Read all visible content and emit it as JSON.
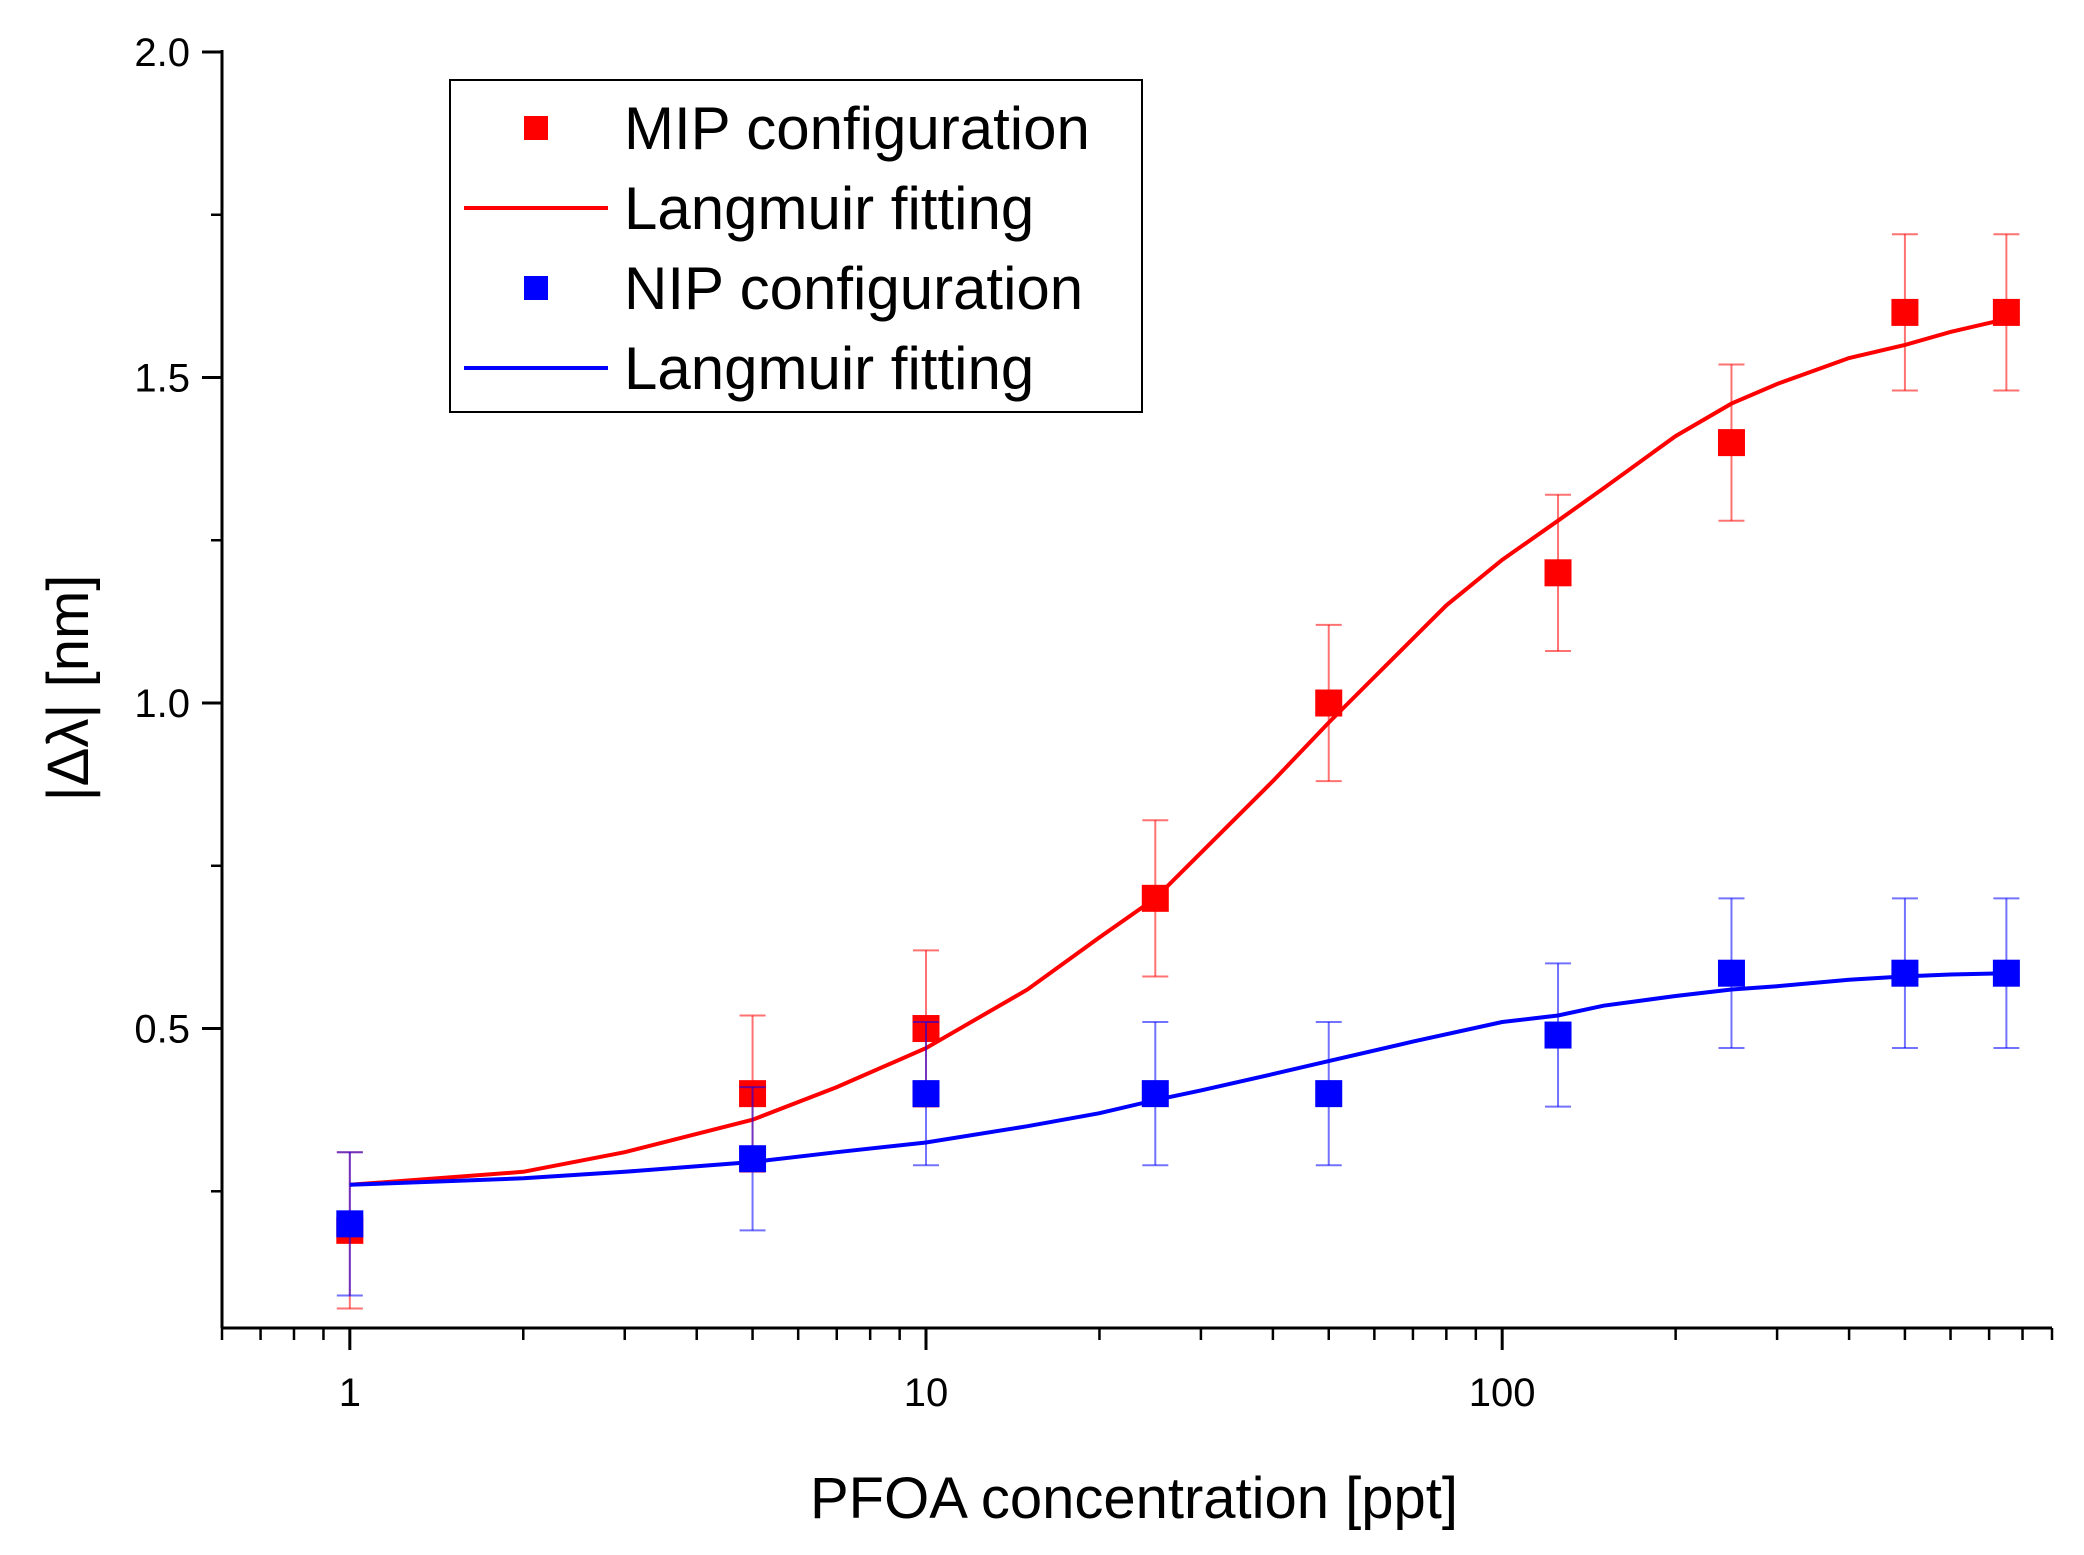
{
  "chart_data": {
    "type": "scatter",
    "xscale": "log",
    "xlabel": "PFOA concentration [ppt]",
    "ylabel": "|Δλ| [nm]",
    "xlim": [
      0.6,
      900
    ],
    "ylim": [
      0.04,
      2.0
    ],
    "xticks": [
      1,
      10,
      100
    ],
    "xtick_labels": [
      "1",
      "10",
      "100"
    ],
    "yticks": [
      0.5,
      1.0,
      1.5,
      2.0
    ],
    "ytick_labels": [
      "0.5",
      "1.0",
      "1.5",
      "2.0"
    ],
    "legend_position": "top-left",
    "grid": false,
    "series": [
      {
        "name": "MIP configuration",
        "kind": "points",
        "color": "#ff0000",
        "x": [
          1,
          5,
          10,
          25,
          50,
          125,
          250,
          500,
          750
        ],
        "y": [
          0.19,
          0.4,
          0.5,
          0.7,
          1.0,
          1.2,
          1.4,
          1.6,
          1.6
        ],
        "err": [
          0.12,
          0.12,
          0.12,
          0.12,
          0.12,
          0.12,
          0.12,
          0.12,
          0.12
        ]
      },
      {
        "name": "Langmuir fitting",
        "kind": "line",
        "color": "#ff0000",
        "x": [
          1,
          2,
          3,
          5,
          7,
          10,
          15,
          20,
          25,
          30,
          40,
          50,
          60,
          80,
          100,
          125,
          150,
          200,
          250,
          300,
          400,
          500,
          600,
          750
        ],
        "y": [
          0.26,
          0.28,
          0.31,
          0.36,
          0.41,
          0.47,
          0.56,
          0.64,
          0.7,
          0.77,
          0.88,
          0.97,
          1.04,
          1.15,
          1.22,
          1.28,
          1.33,
          1.41,
          1.46,
          1.49,
          1.53,
          1.55,
          1.57,
          1.59
        ]
      },
      {
        "name": "NIP configuration",
        "kind": "points",
        "color": "#0000ff",
        "x": [
          1,
          5,
          10,
          25,
          50,
          125,
          250,
          500,
          750
        ],
        "y": [
          0.2,
          0.3,
          0.4,
          0.4,
          0.4,
          0.49,
          0.585,
          0.585,
          0.585
        ],
        "err": [
          0.11,
          0.11,
          0.11,
          0.11,
          0.11,
          0.11,
          0.115,
          0.115,
          0.115
        ]
      },
      {
        "name": "Langmuir fitting",
        "kind": "line",
        "color": "#0000ff",
        "x": [
          1,
          2,
          3,
          5,
          7,
          10,
          15,
          20,
          25,
          30,
          40,
          50,
          70,
          100,
          125,
          150,
          200,
          250,
          300,
          400,
          500,
          600,
          750
        ],
        "y": [
          0.26,
          0.27,
          0.28,
          0.295,
          0.31,
          0.325,
          0.35,
          0.37,
          0.39,
          0.405,
          0.43,
          0.45,
          0.48,
          0.51,
          0.52,
          0.535,
          0.55,
          0.56,
          0.565,
          0.575,
          0.58,
          0.583,
          0.585
        ]
      }
    ]
  }
}
